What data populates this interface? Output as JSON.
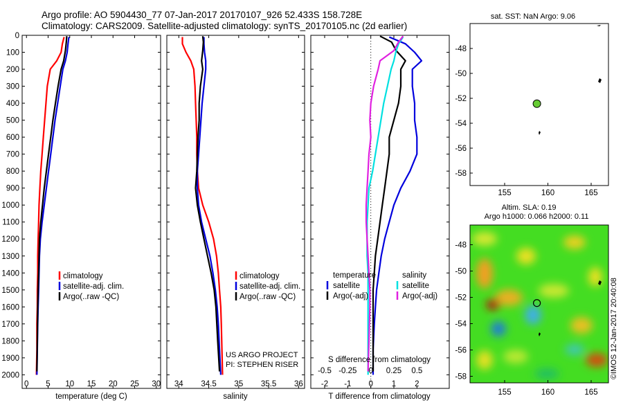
{
  "header": {
    "line1": "Argo profile: AO 5904430_77 07-Jan-2017 20170107_926 52.433S 158.728E",
    "line2": "Climatology: CARS2009. Satellite-adjusted climatology: synTS_20170105.nc (2d earlier)"
  },
  "colors": {
    "climatology": "#ff0000",
    "satellite": "#0000dd",
    "argo": "#000000",
    "sat_salinity": "#00e0e0",
    "argo_salinity": "#e020e0"
  },
  "chart_data": [
    {
      "type": "line",
      "xlabel": "temperature (deg C)",
      "xlim": [
        -1,
        31
      ],
      "xticks": [
        0,
        5,
        10,
        15,
        20,
        25,
        30
      ],
      "ylim": [
        2080,
        0
      ],
      "yticks": [
        0,
        100,
        200,
        300,
        400,
        500,
        600,
        700,
        800,
        900,
        1000,
        1100,
        1200,
        1300,
        1400,
        1500,
        1600,
        1700,
        1800,
        1900,
        2000
      ],
      "legend": [
        "climatology",
        "satellite-adj. clim.",
        "Argo(..raw -QC)"
      ],
      "series": [
        {
          "name": "climatology",
          "color": "#ff0000",
          "x": [
            8.7,
            8.3,
            8.0,
            7.0,
            5.5,
            4.8,
            4.5,
            4.2,
            3.9,
            3.6,
            3.3,
            3.1,
            2.9,
            2.8,
            2.7,
            2.6,
            2.6,
            2.5,
            2.5,
            2.4,
            2.4,
            2.3
          ],
          "y": [
            10,
            50,
            100,
            150,
            200,
            300,
            400,
            500,
            600,
            700,
            800,
            900,
            1000,
            1100,
            1200,
            1300,
            1400,
            1500,
            1600,
            1700,
            1850,
            2000
          ]
        },
        {
          "name": "satellite-adj. clim.",
          "color": "#0000dd",
          "x": [
            9.8,
            9.6,
            9.4,
            9.0,
            8.4,
            7.8,
            7.2,
            6.6,
            6.1,
            5.6,
            5.1,
            4.6,
            4.1,
            3.6,
            3.2,
            3.0,
            2.9,
            2.8,
            2.7,
            2.6,
            2.5,
            2.4
          ],
          "y": [
            10,
            50,
            100,
            150,
            200,
            300,
            400,
            500,
            600,
            700,
            800,
            900,
            1000,
            1100,
            1200,
            1300,
            1400,
            1500,
            1600,
            1700,
            1850,
            2000
          ]
        },
        {
          "name": "Argo(..raw -QC)",
          "color": "#000000",
          "x": [
            9.3,
            9.2,
            9.0,
            8.6,
            8.0,
            7.3,
            6.7,
            6.1,
            5.6,
            5.1,
            4.6,
            4.1,
            3.7,
            3.3,
            3.0,
            2.9,
            2.8,
            2.7,
            2.6,
            2.5,
            2.4
          ],
          "y": [
            5,
            40,
            90,
            150,
            200,
            300,
            400,
            500,
            600,
            700,
            800,
            900,
            1000,
            1100,
            1200,
            1300,
            1400,
            1500,
            1600,
            1800,
            1980
          ]
        }
      ]
    },
    {
      "type": "line",
      "xlabel": "salinity",
      "xlim": [
        33.8,
        36.1
      ],
      "xticks": [
        34,
        34.5,
        35,
        35.5,
        36
      ],
      "ylim": [
        2080,
        0
      ],
      "legend": [
        "climatology",
        "satellite-adj. clim.",
        "Argo(..raw -QC)"
      ],
      "annotations": [
        "US ARGO PROJECT",
        "PI: STEPHEN RISER"
      ],
      "series": [
        {
          "name": "climatology",
          "color": "#ff0000",
          "x": [
            34.06,
            34.06,
            34.12,
            34.2,
            34.25,
            34.27,
            34.28,
            34.29,
            34.3,
            34.3,
            34.31,
            34.33,
            34.4,
            34.5,
            34.58,
            34.63,
            34.66,
            34.68,
            34.7,
            34.71,
            34.72,
            34.73
          ],
          "y": [
            10,
            50,
            100,
            150,
            200,
            300,
            400,
            500,
            600,
            700,
            800,
            900,
            1000,
            1100,
            1200,
            1300,
            1400,
            1500,
            1600,
            1700,
            1850,
            2000
          ]
        },
        {
          "name": "satellite-adj. clim.",
          "color": "#0000dd",
          "x": [
            34.42,
            34.42,
            34.43,
            34.45,
            34.45,
            34.42,
            34.39,
            34.37,
            34.35,
            34.33,
            34.31,
            34.31,
            34.33,
            34.38,
            34.45,
            34.52,
            34.57,
            34.61,
            34.64,
            34.66,
            34.68,
            34.7
          ],
          "y": [
            10,
            50,
            100,
            150,
            200,
            300,
            400,
            500,
            600,
            700,
            800,
            900,
            1000,
            1100,
            1200,
            1300,
            1400,
            1500,
            1600,
            1700,
            1850,
            2000
          ]
        },
        {
          "name": "Argo(..raw -QC)",
          "color": "#000000",
          "x": [
            34.4,
            34.41,
            34.4,
            34.38,
            34.4,
            34.36,
            34.34,
            34.34,
            34.32,
            34.31,
            34.3,
            34.28,
            34.31,
            34.36,
            34.42,
            34.48,
            34.54,
            34.59,
            34.62,
            34.65,
            34.68
          ],
          "y": [
            5,
            40,
            90,
            150,
            200,
            300,
            400,
            500,
            600,
            700,
            800,
            900,
            1000,
            1100,
            1200,
            1300,
            1400,
            1500,
            1600,
            1800,
            1980
          ]
        }
      ]
    },
    {
      "type": "line",
      "xlabel": "T difference from climatology",
      "xlabel_top": "S difference from climatology",
      "xlim": [
        -2.6,
        3.4
      ],
      "xticks": [
        -2,
        -1,
        0,
        1,
        2
      ],
      "xticks_top": [
        -0.5,
        -0.25,
        0,
        0.25,
        0.5
      ],
      "ylim": [
        2080,
        0
      ],
      "legend": [
        {
          "group": "temperature",
          "items": [
            "satellite",
            "Argo(-adj)"
          ]
        },
        {
          "group": "salinity",
          "items": [
            "satellite",
            "Argo(-adj)"
          ]
        }
      ],
      "series": [
        {
          "name": "temperature satellite",
          "color": "#0000dd",
          "x": [
            0.8,
            1.5,
            1.9,
            2.2,
            1.8,
            1.8,
            1.9,
            1.9,
            2.0,
            2.0,
            1.7,
            1.3,
            1.0,
            0.8,
            0.6,
            0.45,
            0.35,
            0.25,
            0.2,
            0.15,
            0.1,
            0.1
          ],
          "y": [
            10,
            50,
            100,
            150,
            200,
            300,
            400,
            500,
            600,
            700,
            800,
            900,
            1000,
            1100,
            1200,
            1300,
            1400,
            1500,
            1600,
            1700,
            1850,
            2000
          ]
        },
        {
          "name": "temperature Argo(-adj)",
          "color": "#000000",
          "x": [
            0.4,
            0.9,
            1.1,
            1.5,
            1.3,
            1.3,
            1.2,
            1.0,
            0.8,
            0.8,
            0.7,
            0.6,
            0.5,
            0.4,
            0.3,
            0.2,
            0.15,
            0.1,
            0.1,
            0.1,
            0.1
          ],
          "y": [
            5,
            40,
            90,
            150,
            200,
            300,
            400,
            500,
            600,
            700,
            800,
            900,
            1000,
            1100,
            1200,
            1300,
            1400,
            1500,
            1600,
            1800,
            1980
          ]
        },
        {
          "name": "salinity satellite",
          "color": "#00e0e0",
          "x_s": [
            0.35,
            0.3,
            0.27,
            0.25,
            0.22,
            0.18,
            0.14,
            0.11,
            0.08,
            0.05,
            0.02,
            -0.02,
            -0.03,
            -0.04,
            -0.04,
            -0.04,
            -0.03,
            -0.03,
            -0.03,
            -0.03,
            -0.03,
            -0.03
          ],
          "y": [
            10,
            50,
            100,
            150,
            200,
            300,
            400,
            500,
            600,
            700,
            800,
            900,
            1000,
            1100,
            1200,
            1300,
            1400,
            1500,
            1600,
            1700,
            1850,
            2000
          ]
        },
        {
          "name": "salinity Argo(-adj)",
          "color": "#e020e0",
          "x_s": [
            0.35,
            0.3,
            0.25,
            0.1,
            0.08,
            0.03,
            0.0,
            -0.01,
            0.0,
            -0.02,
            -0.03,
            -0.04,
            -0.05,
            -0.05,
            -0.04,
            -0.03,
            -0.02,
            -0.01,
            -0.01,
            -0.02,
            -0.03
          ],
          "y": [
            5,
            40,
            90,
            150,
            200,
            300,
            400,
            500,
            600,
            700,
            800,
            900,
            1000,
            1100,
            1200,
            1300,
            1400,
            1500,
            1600,
            1800,
            1980
          ]
        }
      ]
    },
    {
      "type": "scatter",
      "title": "sat. SST: NaN  Argo: 9.06",
      "xlim": [
        151,
        167
      ],
      "ylim": [
        -59,
        -46
      ],
      "xticks": [
        155,
        160,
        165
      ],
      "yticks": [
        -48,
        -50,
        -52,
        -54,
        -56,
        -58
      ],
      "points": [
        {
          "x": 158.728,
          "y": -52.433,
          "color": "#66cc33"
        }
      ]
    },
    {
      "type": "heatmap",
      "title_line1": "Altim. SLA: 0.19",
      "title_line2": "Argo h1000: 0.066 h2000: 0.11",
      "xlim": [
        151,
        167
      ],
      "ylim": [
        -58.5,
        -46.5
      ],
      "xticks": [
        155,
        160,
        165
      ],
      "yticks": [
        -48,
        -50,
        -52,
        -54,
        -56,
        -58
      ],
      "points": [
        {
          "x": 158.728,
          "y": -52.433
        }
      ],
      "side_label": "©IMOS 12-Jan-2017 20:40:08"
    }
  ]
}
